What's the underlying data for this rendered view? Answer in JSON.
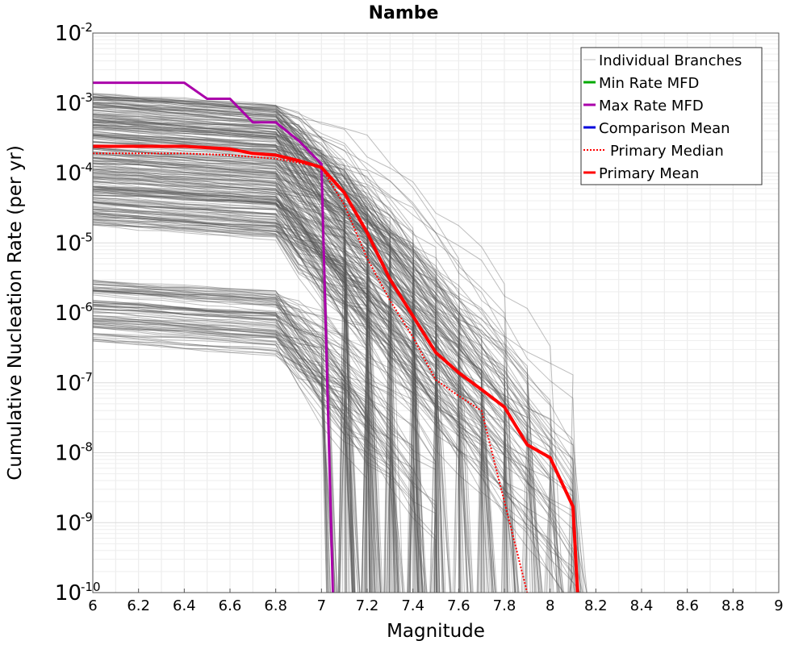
{
  "chart_data": {
    "type": "line",
    "title": "Nambe",
    "xlabel": "Magnitude",
    "ylabel": "Cumulative Nucleation Rate (per yr)",
    "xlim": [
      6,
      9
    ],
    "ylim": [
      1e-10,
      0.01
    ],
    "y_scale": "log",
    "grid": true,
    "legend_position": "top-right",
    "x_ticks": [
      "6",
      "6.2",
      "6.4",
      "6.6",
      "6.8",
      "7",
      "7.2",
      "7.4",
      "7.6",
      "7.8",
      "8",
      "8.2",
      "8.4",
      "8.6",
      "8.8",
      "9"
    ],
    "y_ticks": [
      {
        "base": "10",
        "exp": "-2"
      },
      {
        "base": "10",
        "exp": "-3"
      },
      {
        "base": "10",
        "exp": "-4"
      },
      {
        "base": "10",
        "exp": "-5"
      },
      {
        "base": "10",
        "exp": "-6"
      },
      {
        "base": "10",
        "exp": "-7"
      },
      {
        "base": "10",
        "exp": "-8"
      },
      {
        "base": "10",
        "exp": "-9"
      },
      {
        "base": "10",
        "exp": "-10"
      }
    ],
    "legend": [
      {
        "label": "Individual Branches",
        "color": "#bdbdbd",
        "style": "solid"
      },
      {
        "label": "Min Rate MFD",
        "color": "#00aa00",
        "style": "solid"
      },
      {
        "label": "Max Rate MFD",
        "color": "#aa00aa",
        "style": "solid"
      },
      {
        "label": "Comparison Mean",
        "color": "#0000dd",
        "style": "solid"
      },
      {
        "label": "Primary Median",
        "color": "#ff0000",
        "style": "dotted"
      },
      {
        "label": "Primary Mean",
        "color": "#ff0000",
        "style": "solid"
      }
    ],
    "series": [
      {
        "name": "Max Rate MFD",
        "color": "#aa00aa",
        "x": [
          6.0,
          6.4,
          6.5,
          6.6,
          6.7,
          6.8,
          6.9,
          7.0,
          7.05
        ],
        "y": [
          0.00195,
          0.00195,
          0.00115,
          0.00115,
          0.00053,
          0.00053,
          0.00029,
          0.000135,
          1e-10
        ]
      },
      {
        "name": "Primary Mean",
        "color": "#ff0000",
        "x": [
          6.0,
          6.4,
          6.6,
          6.7,
          6.8,
          6.9,
          7.0,
          7.1,
          7.2,
          7.3,
          7.4,
          7.5,
          7.6,
          7.7,
          7.8,
          7.9,
          8.0,
          8.1,
          8.12
        ],
        "y": [
          0.00024,
          0.00024,
          0.00022,
          0.00019,
          0.00018,
          0.00015,
          0.00012,
          5.2e-05,
          1.4e-05,
          3e-06,
          9e-07,
          2.7e-07,
          1.4e-07,
          8e-08,
          4.5e-08,
          1.3e-08,
          8.5e-09,
          1.7e-09,
          1e-10
        ]
      },
      {
        "name": "Primary Median",
        "color": "#ff0000",
        "x": [
          6.0,
          6.4,
          6.6,
          6.8,
          6.9,
          7.0,
          7.1,
          7.2,
          7.3,
          7.4,
          7.5,
          7.6,
          7.7,
          7.8,
          7.9
        ],
        "y": [
          0.00019,
          0.00019,
          0.00018,
          0.00016,
          0.00014,
          0.00012,
          3.5e-05,
          6e-06,
          1.5e-06,
          4.5e-07,
          1.1e-07,
          6.5e-08,
          4e-08,
          2e-09,
          1e-10
        ]
      }
    ]
  }
}
